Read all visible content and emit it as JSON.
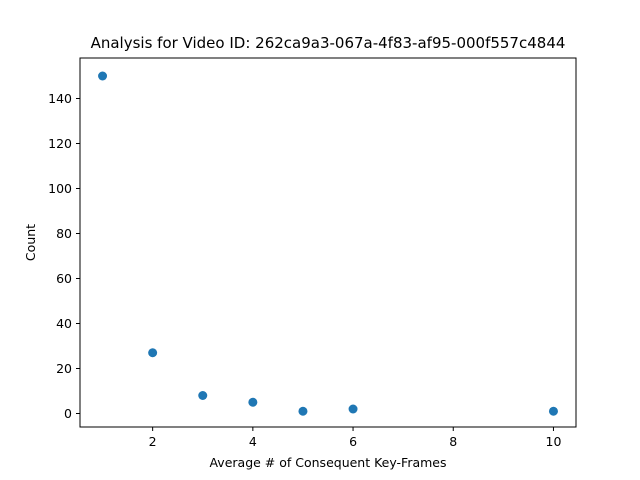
{
  "chart_data": {
    "type": "scatter",
    "title": "Analysis for Video ID: 262ca9a3-067a-4f83-af95-000f557c4844",
    "xlabel": "Average # of Consequent Key-Frames",
    "ylabel": "Count",
    "xlim": [
      0.55,
      10.45
    ],
    "ylim": [
      -6,
      158
    ],
    "xticks": [
      2,
      4,
      6,
      8,
      10
    ],
    "yticks": [
      0,
      20,
      40,
      60,
      80,
      100,
      120,
      140
    ],
    "grid": false,
    "series": [
      {
        "color": "#1f77b4",
        "points": [
          {
            "x": 1,
            "y": 150
          },
          {
            "x": 2,
            "y": 27
          },
          {
            "x": 3,
            "y": 8
          },
          {
            "x": 4,
            "y": 5
          },
          {
            "x": 5,
            "y": 1
          },
          {
            "x": 6,
            "y": 2
          },
          {
            "x": 10,
            "y": 1
          }
        ]
      }
    ]
  }
}
